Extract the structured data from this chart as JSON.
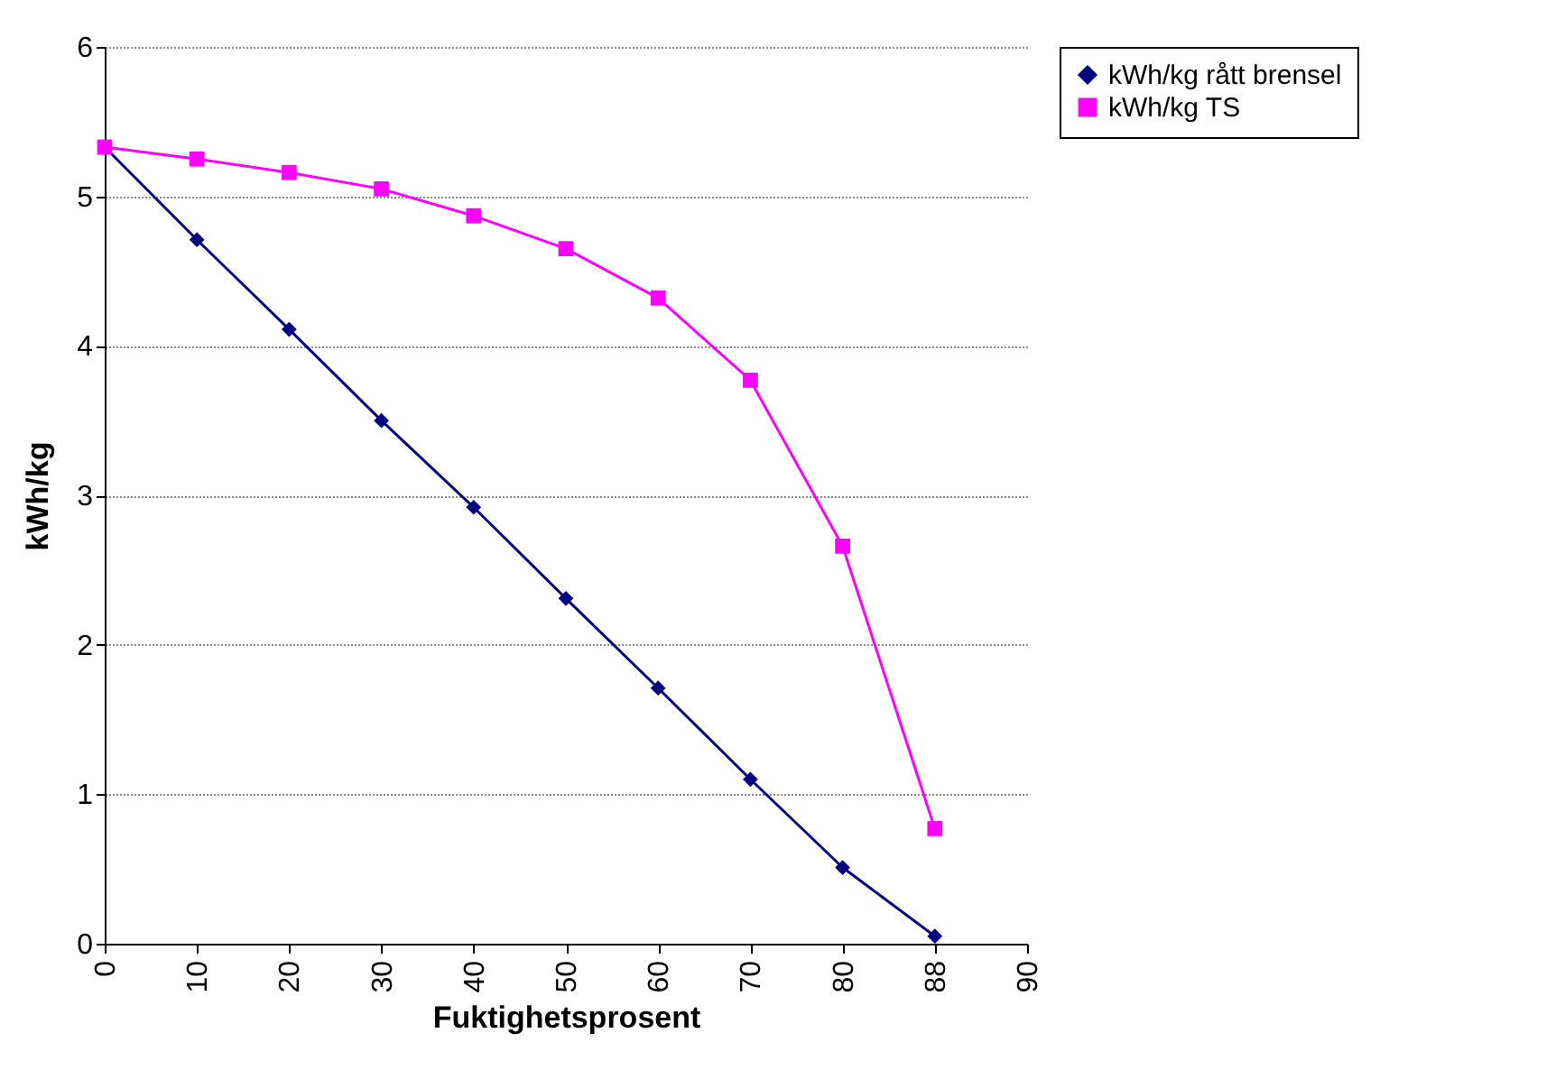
{
  "chart_data": {
    "type": "line",
    "xlabel": "Fuktighetsprosent",
    "ylabel": "kWh/kg",
    "categories": [
      "0",
      "10",
      "20",
      "30",
      "40",
      "50",
      "60",
      "70",
      "80",
      "88",
      "90"
    ],
    "series": [
      {
        "name": "kWh/kg rått brensel",
        "color": "#000080",
        "marker": "diamond",
        "values": [
          5.33,
          4.71,
          4.11,
          3.5,
          2.92,
          2.31,
          1.71,
          1.1,
          0.51,
          0.05,
          null
        ]
      },
      {
        "name": "kWh/kg TS",
        "color": "#ff00ff",
        "marker": "square",
        "values": [
          5.33,
          5.25,
          5.16,
          5.05,
          4.87,
          4.65,
          4.32,
          3.77,
          2.66,
          0.77,
          null
        ]
      }
    ],
    "ylim": [
      0,
      6
    ],
    "yticks": [
      0,
      1,
      2,
      3,
      4,
      5,
      6
    ],
    "grid": "y",
    "legend": "right",
    "line_style": "solid"
  }
}
